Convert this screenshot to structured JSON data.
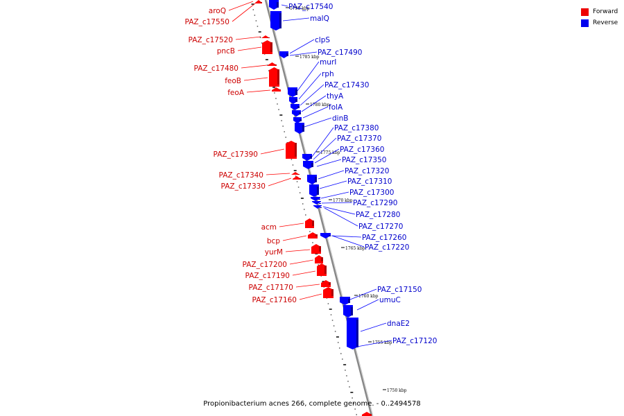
{
  "colors": {
    "forward": "#ff0000",
    "forward_dark": "#b00000",
    "reverse": "#0000ff",
    "reverse_dark": "#0000a0",
    "backbone": "#888888"
  },
  "legend": [
    {
      "label": "Forward",
      "color": "#ee0000"
    },
    {
      "label": "Reverse",
      "color": "#0000ee"
    }
  ],
  "caption": "Propionibacterium acnes 266, complete genome. - 0..2494578",
  "scale_labels": [
    "1790 kbp",
    "1785 kbp",
    "1780 kbp",
    "1775 kbp",
    "1770 kbp",
    "1765 kbp",
    "1760 kbp",
    "1755 kbp",
    "1750 kbp"
  ],
  "forward_genes": [
    "aroQ",
    "PAZ_c17550",
    "PAZ_c17520",
    "pncB",
    "PAZ_c17480",
    "feoB",
    "feoA",
    "PAZ_c17390",
    "PAZ_c17340",
    "PAZ_c17330",
    "acm",
    "bcp",
    "yurM",
    "PAZ_c17200",
    "PAZ_c17190",
    "PAZ_c17170",
    "PAZ_c17160"
  ],
  "reverse_genes": [
    "PAZ_c17540",
    "malQ",
    "clpS",
    "PAZ_c17490",
    "murI",
    "rph",
    "PAZ_c17430",
    "thyA",
    "folA",
    "dinB",
    "PAZ_c17380",
    "PAZ_c17370",
    "PAZ_c17360",
    "PAZ_c17350",
    "PAZ_c17320",
    "PAZ_c17310",
    "PAZ_c17300",
    "PAZ_c17290",
    "PAZ_c17280",
    "PAZ_c17270",
    "PAZ_c17260",
    "PAZ_c17220",
    "PAZ_c17150",
    "umuC",
    "dnaE2",
    "PAZ_c17120"
  ]
}
